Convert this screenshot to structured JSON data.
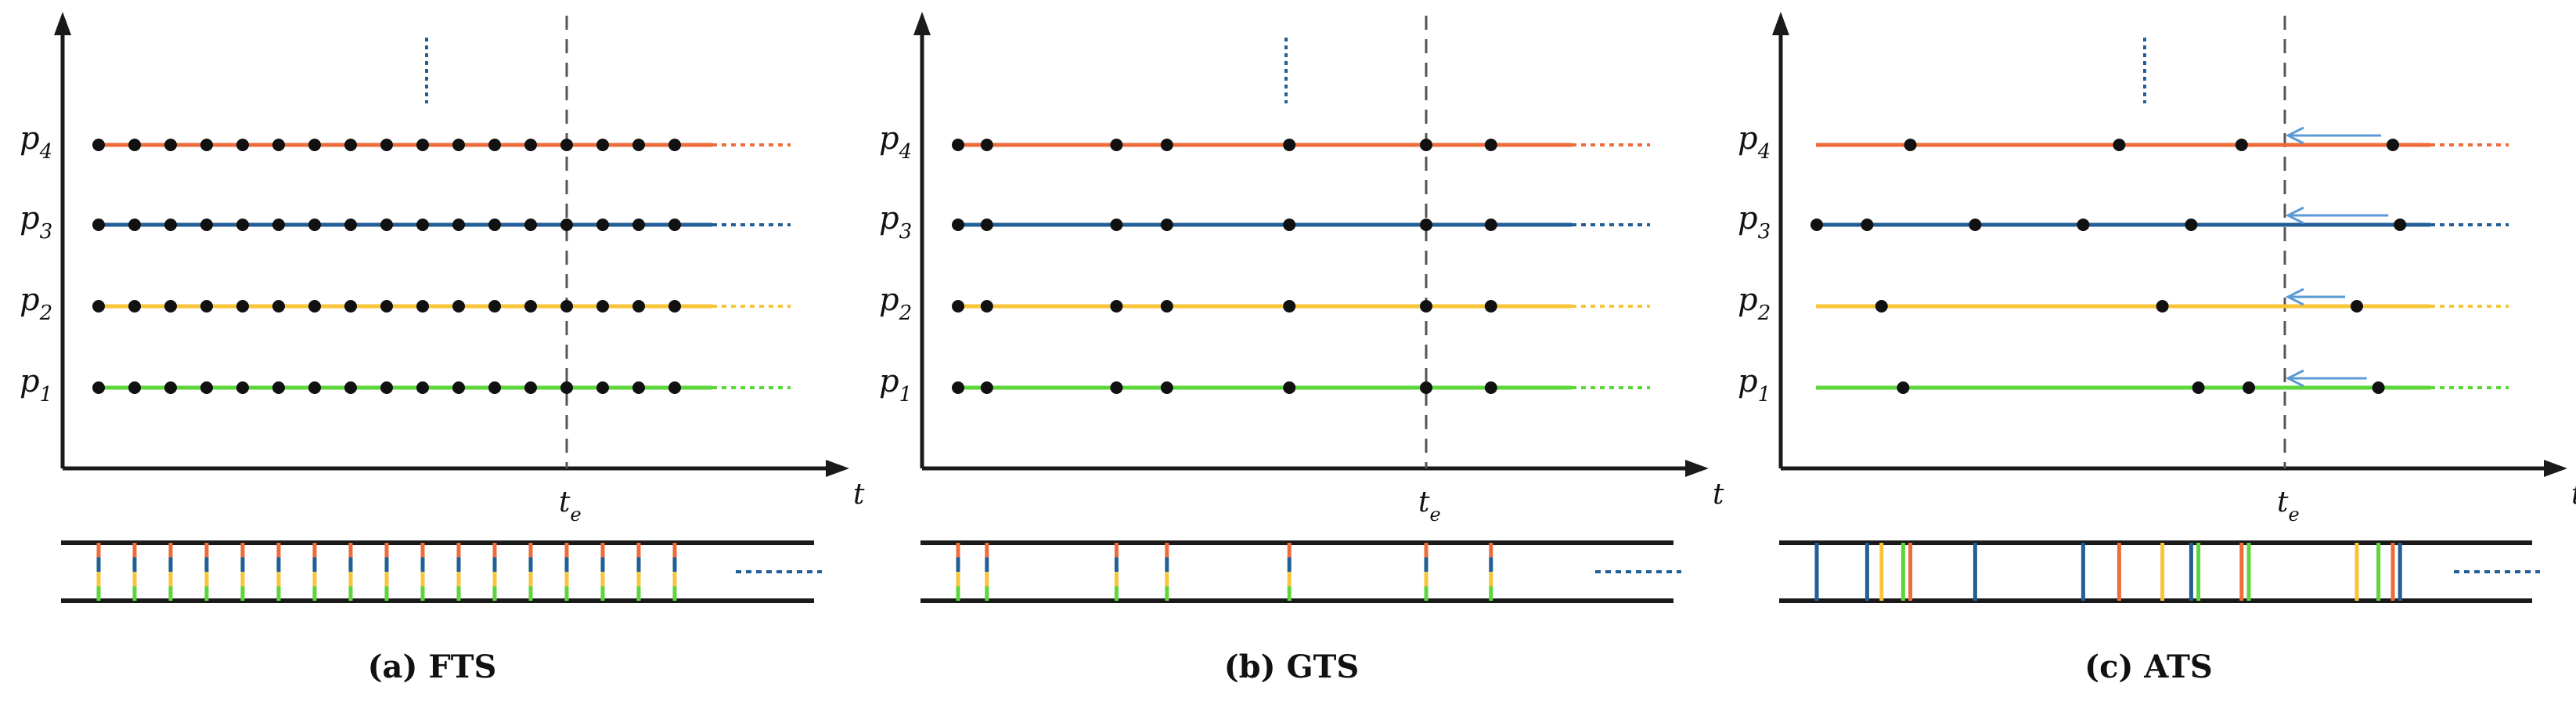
{
  "colors": {
    "p1": "#5cd63a",
    "p2": "#f7c537",
    "p3": "#215f96",
    "p4": "#ef6c3a",
    "axis": "#1a1a1a",
    "arrow": "#5b9bd5",
    "dashed_marker": "#215f96"
  },
  "labels": {
    "process_main": "p",
    "process_subs": [
      "1",
      "2",
      "3",
      "4"
    ],
    "time_axis": "t",
    "time_event_main": "t",
    "time_event_sub": "e"
  },
  "panels": [
    {
      "id": "fts",
      "caption": "(a) FTS",
      "has_te_label": true,
      "samples": {
        "p1": [
          0.05,
          0.1,
          0.15,
          0.2,
          0.25,
          0.3,
          0.35,
          0.4,
          0.45,
          0.5,
          0.55,
          0.6,
          0.65,
          0.7,
          0.75,
          0.8,
          0.85
        ],
        "p2": [
          0.05,
          0.1,
          0.15,
          0.2,
          0.25,
          0.3,
          0.35,
          0.4,
          0.45,
          0.5,
          0.55,
          0.6,
          0.65,
          0.7,
          0.75,
          0.8,
          0.85
        ],
        "p3": [
          0.05,
          0.1,
          0.15,
          0.2,
          0.25,
          0.3,
          0.35,
          0.4,
          0.45,
          0.5,
          0.55,
          0.6,
          0.65,
          0.7,
          0.75,
          0.8,
          0.85
        ],
        "p4": [
          0.05,
          0.1,
          0.15,
          0.2,
          0.25,
          0.3,
          0.35,
          0.4,
          0.45,
          0.5,
          0.55,
          0.6,
          0.65,
          0.7,
          0.75,
          0.8,
          0.85
        ]
      },
      "te": 0.7,
      "arrows": false
    },
    {
      "id": "gts",
      "caption": "(b) GTS",
      "has_te_label": true,
      "samples": {
        "p1": [
          0.05,
          0.09,
          0.27,
          0.34,
          0.51,
          0.7,
          0.79
        ],
        "p2": [
          0.05,
          0.09,
          0.27,
          0.34,
          0.51,
          0.7,
          0.79
        ],
        "p3": [
          0.05,
          0.09,
          0.27,
          0.34,
          0.51,
          0.7,
          0.79
        ],
        "p4": [
          0.05,
          0.09,
          0.27,
          0.34,
          0.51,
          0.7,
          0.79
        ]
      },
      "te": 0.7,
      "arrows": false
    },
    {
      "id": "ats",
      "caption": "(c) ATS",
      "has_te_label": true,
      "samples": {
        "p1": [
          0.17,
          0.58,
          0.65,
          0.83
        ],
        "p2": [
          0.14,
          0.53,
          0.8
        ],
        "p3": [
          0.05,
          0.12,
          0.27,
          0.42,
          0.57,
          0.86
        ],
        "p4": [
          0.18,
          0.47,
          0.64,
          0.85
        ]
      },
      "te": 0.7,
      "arrows": true
    }
  ]
}
